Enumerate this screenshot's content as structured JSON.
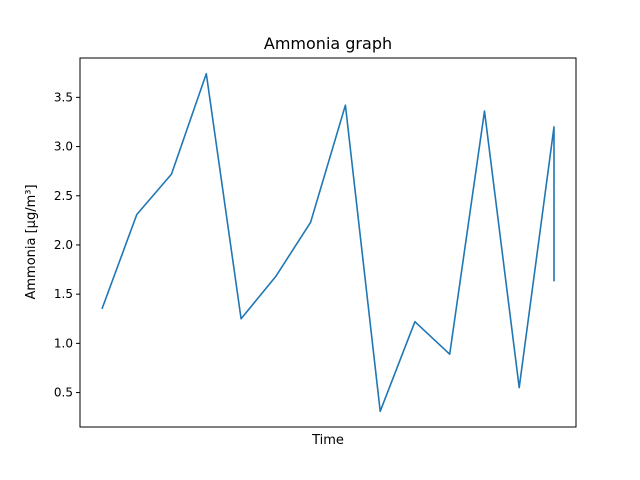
{
  "chart_data": {
    "type": "line",
    "title": "Ammonia graph",
    "xlabel": "Time",
    "ylabel": "Ammonia [µg/m³]",
    "ylim": [
      0.15,
      3.9
    ],
    "yticks": [
      0.5,
      1.0,
      1.5,
      2.0,
      2.5,
      3.0,
      3.5
    ],
    "ytick_labels": [
      "0.5",
      "1.0",
      "1.5",
      "2.0",
      "2.5",
      "3.0",
      "3.5"
    ],
    "grid": false,
    "legend": "none",
    "series": [
      {
        "color": "#1f77b4",
        "x": [
          0,
          1,
          2,
          3,
          4,
          5,
          6,
          7,
          8,
          9,
          10,
          11,
          12,
          13,
          13
        ],
        "values": [
          1.35,
          2.31,
          2.72,
          3.74,
          1.25,
          1.68,
          2.23,
          3.42,
          0.31,
          1.22,
          0.89,
          3.36,
          0.55,
          3.2,
          1.63
        ]
      }
    ]
  }
}
